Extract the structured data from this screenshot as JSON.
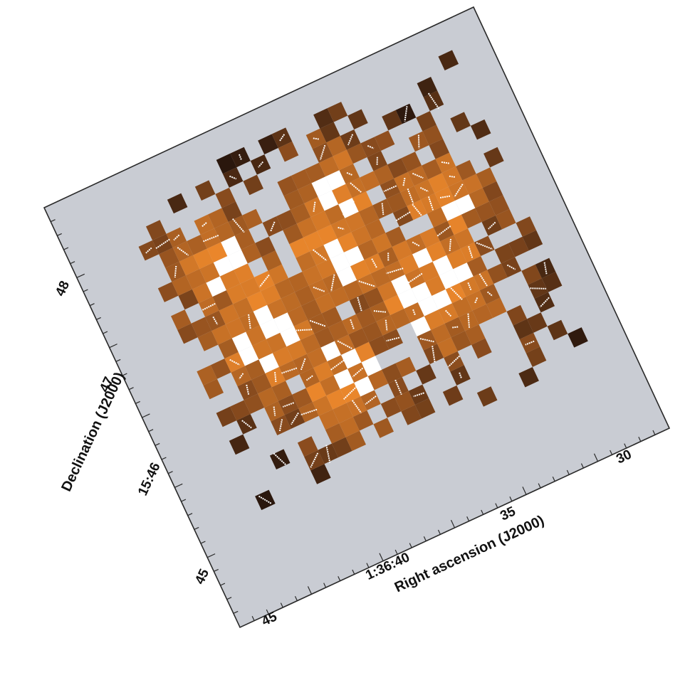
{
  "axes": {
    "x_label": "Right ascension (J2000)",
    "y_label": "Declination (J2000)",
    "x_ticks": [
      "45",
      "1:36:40",
      "35",
      "30"
    ],
    "y_ticks": [
      "45",
      "15:46",
      "47",
      "48"
    ]
  },
  "colors": {
    "background": "#c9ccd3",
    "frame": "#2a2a2a",
    "map_dark": "#2a170d",
    "map_mid": "#8a4c1e",
    "map_bright": "#f08a2c",
    "map_peak": "#ffffff",
    "vectors": "#ffffff"
  }
}
